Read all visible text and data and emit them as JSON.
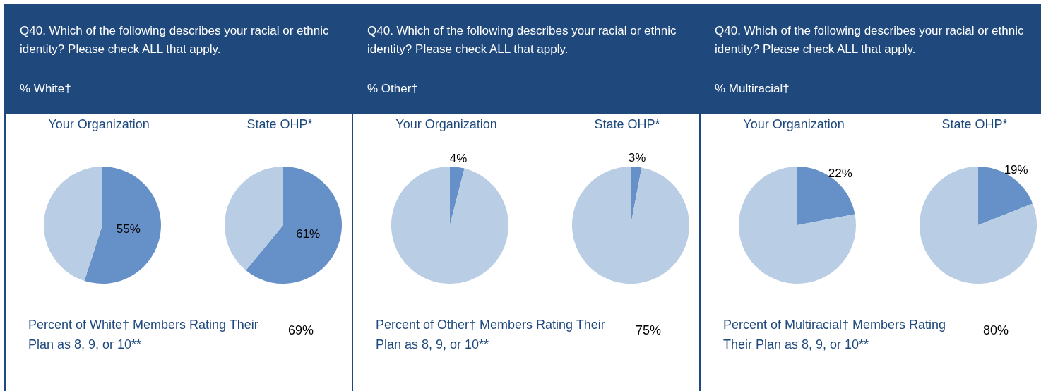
{
  "chart_data": [
    {
      "type": "other",
      "title": "Q40. Which of the following describes your racial or ethnic identity? Please check ALL that apply.",
      "subtitle": "% White†"
    },
    {
      "type": "pie",
      "title": "Your Organization",
      "categories": [
        null,
        null
      ],
      "values": [
        55,
        45
      ],
      "colors": [
        "#6690c8",
        "#b9cde5"
      ],
      "value_labels": [
        "55%",
        null
      ]
    },
    {
      "type": "pie",
      "title": "State OHP*",
      "categories": [
        null,
        null
      ],
      "values": [
        61,
        39
      ],
      "colors": [
        "#6690c8",
        "#b9cde5"
      ],
      "value_labels": [
        "61%",
        null
      ]
    },
    {
      "type": "other",
      "annotations": [
        "Percent of White† Members Rating Their Plan as 8, 9, or 10**",
        "69%"
      ]
    },
    {
      "type": "other",
      "title": "Q40. Which of the following describes your racial or ethnic identity? Please check ALL that apply.",
      "subtitle": "% Other†"
    },
    {
      "type": "pie",
      "title": "Your Organization",
      "categories": [
        null,
        null
      ],
      "values": [
        4,
        96
      ],
      "colors": [
        "#6690c8",
        "#b9cde5"
      ],
      "value_labels": [
        "4%",
        null
      ]
    },
    {
      "type": "pie",
      "title": "State OHP*",
      "categories": [
        null,
        null
      ],
      "values": [
        3,
        97
      ],
      "colors": [
        "#6690c8",
        "#b9cde5"
      ],
      "value_labels": [
        "3%",
        null
      ]
    },
    {
      "type": "other",
      "annotations": [
        "Percent of Other† Members Rating Their Plan as 8, 9, or 10**",
        "75%"
      ]
    },
    {
      "type": "other",
      "title": "Q40. Which of the following describes your racial or ethnic identity? Please check ALL that apply.",
      "subtitle": "% Multiracial†"
    },
    {
      "type": "pie",
      "title": "Your Organization",
      "categories": [
        null,
        null
      ],
      "values": [
        22,
        78
      ],
      "colors": [
        "#6690c8",
        "#b9cde5"
      ],
      "value_labels": [
        "22%",
        null
      ]
    },
    {
      "type": "pie",
      "title": "State OHP*",
      "categories": [
        null,
        null
      ],
      "values": [
        19,
        81
      ],
      "colors": [
        "#6690c8",
        "#b9cde5"
      ],
      "value_labels": [
        "19%",
        null
      ]
    },
    {
      "type": "other",
      "annotations": [
        "Percent of Multiracial† Members Rating Their Plan as 8, 9, or 10**",
        "80%"
      ]
    }
  ]
}
